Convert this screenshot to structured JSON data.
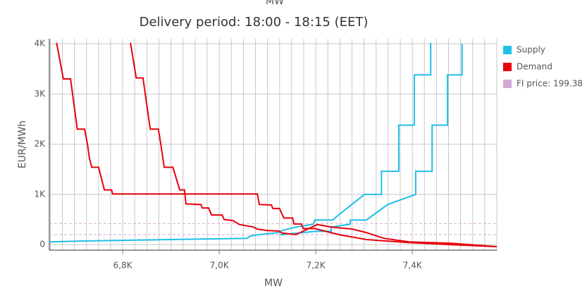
{
  "chart_data": {
    "type": "line",
    "top_label": "MW",
    "title": "Delivery period: 18:00 - 18:15 (EET)",
    "x_label": "MW",
    "y_label": "EUR/MWh",
    "xlim": [
      6648,
      7575
    ],
    "ylim": [
      -110,
      4100
    ],
    "xticks": [
      {
        "value": 6800,
        "label": "6,8K"
      },
      {
        "value": 7000,
        "label": "7,0K"
      },
      {
        "value": 7200,
        "label": "7,2K"
      },
      {
        "value": 7400,
        "label": "7,4K"
      }
    ],
    "yticks": [
      0,
      {
        "value": 1000,
        "label": "1K"
      },
      {
        "value": 2000,
        "label": "2K"
      },
      {
        "value": 3000,
        "label": "3K"
      },
      {
        "value": 4000,
        "label": "4K"
      }
    ],
    "grid": true,
    "legend": [
      {
        "label": "Supply",
        "color": "#1ebfe8"
      },
      {
        "label": "Demand",
        "color": "#e8000b"
      },
      {
        "label": "FI price: 199.38",
        "color": "#d6a8d6"
      }
    ],
    "price_lines": {
      "color": "#d6a8d6",
      "values": [
        199.38,
        420
      ]
    },
    "series": [
      {
        "name": "Supply",
        "color": "#1ebfe8",
        "x": [
          6648,
          6706,
          7057,
          7064,
          7079,
          7122,
          7130,
          7159,
          7195,
          7198,
          7235,
          7247,
          7301,
          7336,
          7336,
          7372,
          7372,
          7404,
          7404,
          7438,
          7438
        ],
        "values": [
          55,
          70,
          126,
          168,
          196,
          238,
          280,
          350,
          407,
          490,
          490,
          590,
          1000,
          1000,
          1460,
          1460,
          2380,
          2380,
          3380,
          3380,
          4020
        ]
      },
      {
        "name": "Supply",
        "color": "#1ebfe8",
        "x": [
          7126,
          7200,
          7232,
          7232,
          7271,
          7272,
          7305,
          7349,
          7407,
          7407,
          7441,
          7441,
          7473,
          7473,
          7503,
          7503
        ],
        "values": [
          196,
          266,
          266,
          350,
          407,
          490,
          490,
          800,
          1000,
          1460,
          1460,
          2380,
          2380,
          3380,
          3380,
          4000
        ]
      },
      {
        "name": "Demand",
        "color": "#e8000b",
        "x": [
          6663,
          6677,
          6692,
          6706,
          6721,
          6727,
          6731,
          6736,
          6750,
          6762,
          6777,
          6779,
          7079,
          7083,
          7108,
          7111,
          7125,
          7134,
          7152,
          7155,
          7170,
          7174,
          7198,
          7247,
          7305,
          7393,
          7480,
          7575
        ],
        "values": [
          4020,
          3300,
          3300,
          2300,
          2300,
          2000,
          1720,
          1540,
          1540,
          1090,
          1090,
          1010,
          1010,
          800,
          790,
          720,
          720,
          530,
          530,
          410,
          410,
          320,
          320,
          200,
          100,
          40,
          0,
          -40
        ]
      },
      {
        "name": "Demand",
        "color": "#e8000b",
        "x": [
          6816,
          6828,
          6842,
          6857,
          6874,
          6879,
          6886,
          6904,
          6918,
          6928,
          6931,
          6962,
          6965,
          6978,
          6984,
          7006,
          7010,
          7028,
          7042,
          7071,
          7079,
          7101,
          7123,
          7130,
          7159,
          7203,
          7232,
          7276,
          7305,
          7341,
          7393,
          7480,
          7575
        ],
        "values": [
          4020,
          3320,
          3320,
          2300,
          2300,
          2000,
          1540,
          1540,
          1090,
          1090,
          810,
          800,
          730,
          730,
          590,
          590,
          500,
          480,
          400,
          350,
          310,
          280,
          270,
          230,
          200,
          400,
          350,
          310,
          240,
          126,
          56,
          28,
          -40
        ]
      }
    ]
  }
}
